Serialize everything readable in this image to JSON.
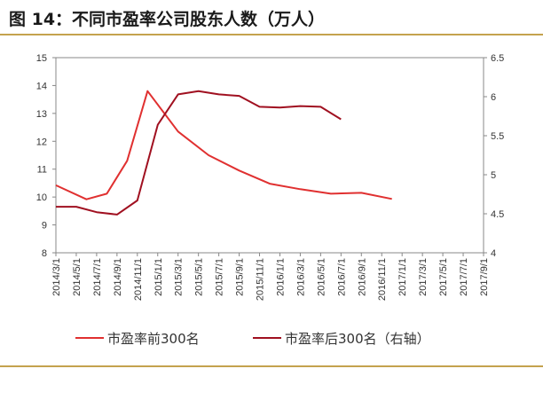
{
  "title": "图 14：不同市盈率公司股东人数（万人）",
  "colors": {
    "rule": "#c4a24e",
    "series1": "#e03030",
    "series2": "#a01020",
    "axis": "#888888"
  },
  "chart_data": {
    "type": "line",
    "title": "图 14：不同市盈率公司股东人数（万人）",
    "categories": [
      "2014/3/1",
      "2014/5/1",
      "2014/7/1",
      "2014/9/1",
      "2014/11/1",
      "2015/1/1",
      "2015/3/1",
      "2015/5/1",
      "2015/7/1",
      "2015/9/1",
      "2015/11/1",
      "2016/1/1",
      "2016/3/1",
      "2016/5/1",
      "2016/7/1",
      "2016/9/1",
      "2016/11/1",
      "2017/1/1",
      "2017/3/1",
      "2017/5/1",
      "2017/7/1",
      "2017/9/1"
    ],
    "y_left_ticks": [
      "15",
      "14",
      "13",
      "12",
      "11",
      "10",
      "9",
      "8"
    ],
    "y_right_ticks": [
      "6.5",
      "6",
      "5.5",
      "5",
      "4.5",
      "4"
    ],
    "ylim_left": [
      8,
      15
    ],
    "ylim_right": [
      4,
      6.5
    ],
    "grid": false,
    "legend_position": "bottom",
    "series": [
      {
        "name": "市盈率前300名",
        "axis": "left",
        "points": [
          {
            "x": 0,
            "y": 10.42
          },
          {
            "x": 3,
            "y": 9.92
          },
          {
            "x": 5,
            "y": 10.12
          },
          {
            "x": 7,
            "y": 11.3
          },
          {
            "x": 9,
            "y": 13.8
          },
          {
            "x": 12,
            "y": 12.35
          },
          {
            "x": 15,
            "y": 11.5
          },
          {
            "x": 18,
            "y": 10.95
          },
          {
            "x": 21,
            "y": 10.48
          },
          {
            "x": 24,
            "y": 10.28
          },
          {
            "x": 27,
            "y": 10.12
          },
          {
            "x": 30,
            "y": 10.15
          },
          {
            "x": 33,
            "y": 9.93
          }
        ]
      },
      {
        "name": "市盈率后300名（右轴）",
        "axis": "right",
        "points": [
          {
            "x": 0,
            "y": 4.59
          },
          {
            "x": 2,
            "y": 4.59
          },
          {
            "x": 4,
            "y": 4.52
          },
          {
            "x": 6,
            "y": 4.49
          },
          {
            "x": 8,
            "y": 4.67
          },
          {
            "x": 10,
            "y": 5.64
          },
          {
            "x": 12,
            "y": 6.03
          },
          {
            "x": 14,
            "y": 6.07
          },
          {
            "x": 16,
            "y": 6.03
          },
          {
            "x": 18,
            "y": 6.01
          },
          {
            "x": 20,
            "y": 5.87
          },
          {
            "x": 22,
            "y": 5.86
          },
          {
            "x": 24,
            "y": 5.88
          },
          {
            "x": 26,
            "y": 5.87
          },
          {
            "x": 28,
            "y": 5.71
          }
        ]
      }
    ]
  }
}
